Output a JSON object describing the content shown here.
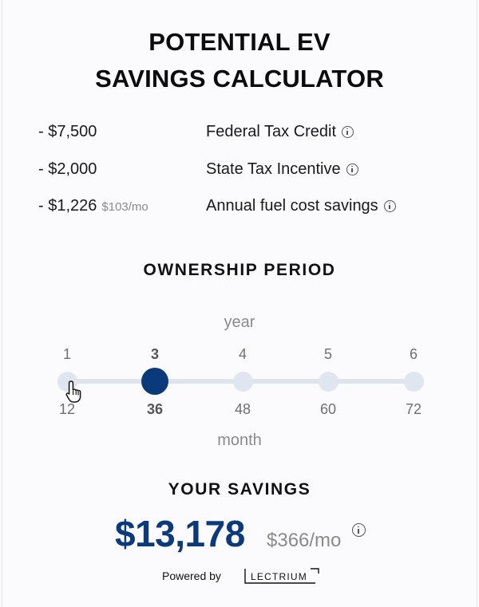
{
  "title": {
    "line1": "POTENTIAL EV",
    "line2": "SAVINGS CALCULATOR"
  },
  "incentives": [
    {
      "amount": "- $7,500",
      "monthly": "",
      "label": "Federal Tax Credit",
      "icon": "info-icon"
    },
    {
      "amount": "- $2,000",
      "monthly": "",
      "label": "State Tax Incentive",
      "icon": "info-icon"
    },
    {
      "amount": "- $1,226",
      "monthly": "$103/mo",
      "label": "Annual fuel cost savings",
      "icon": "info-icon"
    }
  ],
  "ownership": {
    "heading": "OWNERSHIP PERIOD",
    "year_unit": "year",
    "month_unit": "month",
    "years": [
      "1",
      "3",
      "4",
      "5",
      "6"
    ],
    "months": [
      "12",
      "36",
      "48",
      "60",
      "72"
    ],
    "selected_index": 1
  },
  "savings": {
    "heading": "YOUR SAVINGS",
    "amount": "$13,178",
    "monthly": "$366/mo",
    "icon": "info-icon"
  },
  "footer": {
    "powered_by": "Powered by",
    "brand": "LECTRIUM"
  },
  "colors": {
    "accent": "#0b3a7a",
    "stop": "#dfe6ef",
    "track": "#dde4ee",
    "muted": "#8a8a8a"
  },
  "cursor": "hand-pointer-icon"
}
